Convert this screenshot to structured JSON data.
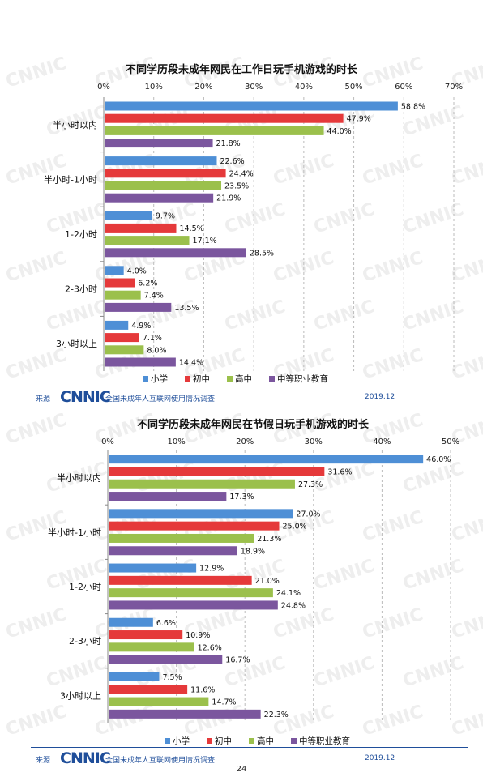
{
  "watermark_text": "CNNIC",
  "chart_data": [
    {
      "type": "bar",
      "orientation": "horizontal",
      "title": "不同学历段未成年网民在工作日玩手机游戏的时长",
      "categories": [
        "半小时以内",
        "半小时-1小时",
        "1-2小时",
        "2-3小时",
        "3小时以上"
      ],
      "xlim": [
        0,
        70
      ],
      "ticks": [
        "0%",
        "10%",
        "20%",
        "30%",
        "40%",
        "50%",
        "60%",
        "70%"
      ],
      "tick_values": [
        0,
        10,
        20,
        30,
        40,
        50,
        60,
        70
      ],
      "grid": true,
      "legend_position": "bottom",
      "series": [
        {
          "name": "小学",
          "color": "#4e8fd6",
          "values": [
            58.8,
            22.6,
            9.7,
            4.0,
            4.9
          ],
          "labels": [
            "58.8%",
            "22.6%",
            "9.7%",
            "4.0%",
            "4.9%"
          ]
        },
        {
          "name": "初中",
          "color": "#e5393a",
          "values": [
            47.9,
            24.4,
            14.5,
            6.2,
            7.1
          ],
          "labels": [
            "47.9%",
            "24.4%",
            "14.5%",
            "6.2%",
            "7.1%"
          ]
        },
        {
          "name": "高中",
          "color": "#9bc04c",
          "values": [
            44.0,
            23.5,
            17.1,
            7.4,
            8.0
          ],
          "labels": [
            "44.0%",
            "23.5%",
            "17.1%",
            "7.4%",
            "8.0%"
          ]
        },
        {
          "name": "中等职业教育",
          "color": "#7b569e",
          "values": [
            21.8,
            21.9,
            28.5,
            13.5,
            14.4
          ],
          "labels": [
            "21.8%",
            "21.9%",
            "28.5%",
            "13.5%",
            "14.4%"
          ]
        }
      ]
    },
    {
      "type": "bar",
      "orientation": "horizontal",
      "title": "不同学历段未成年网民在节假日玩手机游戏的时长",
      "categories": [
        "半小时以内",
        "半小时-1小时",
        "1-2小时",
        "2-3小时",
        "3小时以上"
      ],
      "xlim": [
        0,
        50
      ],
      "ticks": [
        "0%",
        "10%",
        "20%",
        "30%",
        "40%",
        "50%"
      ],
      "tick_values": [
        0,
        10,
        20,
        30,
        40,
        50
      ],
      "grid": true,
      "legend_position": "bottom",
      "series": [
        {
          "name": "小学",
          "color": "#4e8fd6",
          "values": [
            46.0,
            27.0,
            12.9,
            6.6,
            7.5
          ],
          "labels": [
            "46.0%",
            "27.0%",
            "12.9%",
            "6.6%",
            "7.5%"
          ]
        },
        {
          "name": "初中",
          "color": "#e5393a",
          "values": [
            31.6,
            25.0,
            21.0,
            10.9,
            11.6
          ],
          "labels": [
            "31.6%",
            "25.0%",
            "21.0%",
            "10.9%",
            "11.6%"
          ]
        },
        {
          "name": "高中",
          "color": "#9bc04c",
          "values": [
            27.3,
            21.3,
            24.1,
            12.6,
            14.7
          ],
          "labels": [
            "27.3%",
            "21.3%",
            "24.1%",
            "12.6%",
            "14.7%"
          ]
        },
        {
          "name": "中等职业教育",
          "color": "#7b569e",
          "values": [
            17.3,
            18.9,
            24.8,
            16.7,
            22.3
          ],
          "labels": [
            "17.3%",
            "18.9%",
            "24.8%",
            "16.7%",
            "22.3%"
          ]
        }
      ]
    }
  ],
  "footers": [
    {
      "source_label": "来源",
      "logo": "CNNIC",
      "description": "全国未成年人互联网使用情况调查",
      "date": "2019.12"
    },
    {
      "source_label": "来源",
      "logo": "CNNIC",
      "description": "全国未成年人互联网使用情况调查",
      "date": "2019.12"
    }
  ],
  "page_number": "24"
}
